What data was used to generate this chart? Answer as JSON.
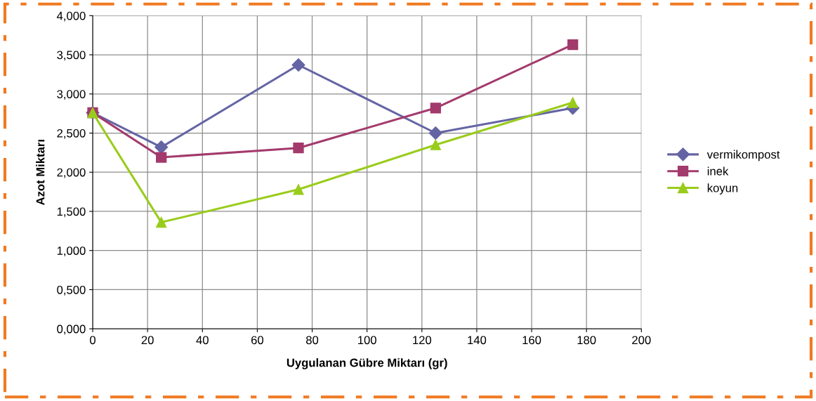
{
  "chart_data": {
    "type": "line",
    "xlabel": "Uygulanan Gübre Miktarı (gr)",
    "ylabel": "Azot Miktarı",
    "x": [
      0,
      25,
      75,
      125,
      175
    ],
    "series": [
      {
        "name": "vermikompost",
        "color": "#6464a4",
        "marker": "diamond",
        "values": [
          2.76,
          2.32,
          3.37,
          2.5,
          2.82
        ]
      },
      {
        "name": "inek",
        "color": "#a33a6c",
        "marker": "square",
        "values": [
          2.76,
          2.19,
          2.31,
          2.82,
          3.63
        ]
      },
      {
        "name": "koyun",
        "color": "#99cc1a",
        "marker": "triangle",
        "values": [
          2.76,
          1.36,
          1.78,
          2.35,
          2.89
        ]
      }
    ],
    "xlim": [
      0,
      200
    ],
    "xticks": [
      0,
      20,
      40,
      60,
      80,
      100,
      120,
      140,
      160,
      180,
      200
    ],
    "ylim": [
      0,
      4
    ],
    "yticks": [
      {
        "value": 0,
        "label": "0,000"
      },
      {
        "value": 0.5,
        "label": "0,500"
      },
      {
        "value": 1,
        "label": "1,000"
      },
      {
        "value": 1.5,
        "label": "1,500"
      },
      {
        "value": 2,
        "label": "2,000"
      },
      {
        "value": 2.5,
        "label": "2,500"
      },
      {
        "value": 3,
        "label": "3,000"
      },
      {
        "value": 3.5,
        "label": "3,500"
      },
      {
        "value": 4,
        "label": "4,000"
      }
    ],
    "grid": true,
    "legend": "right"
  }
}
